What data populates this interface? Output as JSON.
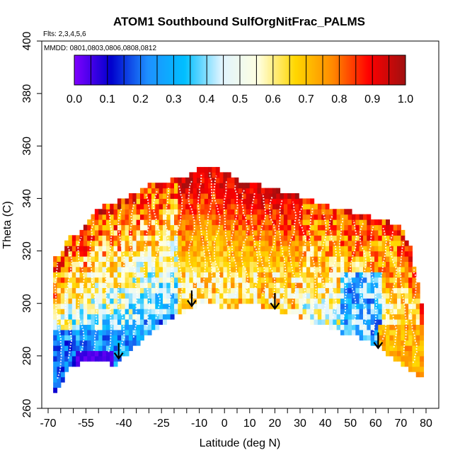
{
  "chart_data": {
    "type": "heatmap",
    "title": "ATOM1 Southbound SulfOrgNitFrac_PALMS",
    "flights_label": "Flts: 2,3,4,5,6",
    "dates_label": "MMDD: 0801,0803,0806,0808,0812",
    "xlabel": "Latitude (deg N)",
    "ylabel": "Theta (C)",
    "xlim": [
      -70,
      82
    ],
    "ylim": [
      260,
      400
    ],
    "x_ticks": [
      -70,
      -55,
      -40,
      -25,
      -10,
      0,
      10,
      20,
      30,
      40,
      50,
      60,
      70,
      80
    ],
    "x_minor_ticks": [
      -65,
      -60,
      -50,
      -45,
      -35,
      -30,
      -20,
      -15,
      -5,
      5,
      15,
      25,
      35,
      45,
      55,
      65,
      75
    ],
    "y_ticks": [
      260,
      280,
      300,
      320,
      340,
      360,
      380,
      400
    ],
    "colorbar": {
      "min": 0.0,
      "max": 1.0,
      "ticks": [
        0.0,
        0.1,
        0.2,
        0.3,
        0.4,
        0.5,
        0.6,
        0.7,
        0.8,
        0.9,
        1.0
      ],
      "tick_labels": [
        "0.0",
        "0.1",
        "0.2",
        "0.3",
        "0.4",
        "0.5",
        "0.6",
        "0.7",
        "0.8",
        "0.9",
        "1.0"
      ],
      "color_stops": [
        "#7f00ff",
        "#0000cd",
        "#1e90ff",
        "#00bfff",
        "#e0f4ff",
        "#ffffe0",
        "#ffd700",
        "#ff8c00",
        "#ff0000",
        "#a01010"
      ]
    },
    "tropopause_arrows": [
      {
        "lat": -42,
        "theta": 279
      },
      {
        "lat": -13,
        "theta": 299
      },
      {
        "lat": 20,
        "theta": 298
      },
      {
        "lat": 61,
        "theta": 283
      }
    ],
    "coverage": {
      "lat": [
        -68,
        -65,
        -62,
        -58,
        -55,
        -52,
        -48,
        -44,
        -42,
        -38,
        -34,
        -30,
        -26,
        -22,
        -18,
        -14,
        -11,
        -8,
        -5,
        -2,
        2,
        6,
        10,
        14,
        18,
        22,
        26,
        30,
        34,
        38,
        42,
        46,
        50,
        54,
        58,
        62,
        66,
        70,
        74,
        77,
        79
      ],
      "theta_bottom": [
        265,
        270,
        276,
        278,
        279,
        279,
        280,
        277,
        279,
        282,
        286,
        289,
        292,
        295,
        297,
        299,
        300,
        301,
        301,
        300,
        299,
        300,
        301,
        300,
        299,
        298,
        297,
        296,
        294,
        293,
        292,
        290,
        289,
        288,
        286,
        284,
        281,
        278,
        275,
        273,
        273
      ],
      "theta_top": [
        316,
        318,
        324,
        326,
        330,
        334,
        336,
        338,
        338,
        340,
        342,
        344,
        345,
        346,
        347,
        348,
        350,
        352,
        352,
        350,
        348,
        346,
        345,
        344,
        343,
        342,
        341,
        340,
        339,
        337,
        336,
        335,
        334,
        333,
        332,
        331,
        330,
        328,
        320,
        305,
        294
      ]
    },
    "field_description_keys": "values on lat x theta grid, see script"
  }
}
